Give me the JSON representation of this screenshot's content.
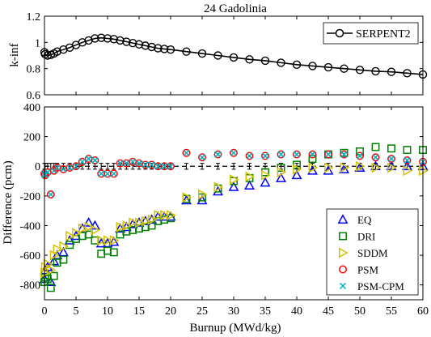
{
  "chart_data": [
    {
      "type": "line",
      "title": "24 Gadolinia",
      "xlabel": "",
      "ylabel": "k-inf",
      "xlim": [
        0,
        60
      ],
      "ylim": [
        0.6,
        1.2
      ],
      "yticks": [
        0.6,
        0.8,
        1,
        1.2
      ],
      "ytick_labels": [
        "0.6",
        "0.8",
        "1",
        "1.2"
      ],
      "grid": false,
      "legend_position": "top-right",
      "series": [
        {
          "name": "SERPENT2",
          "color": "#000000",
          "marker": "circle",
          "x": [
            0,
            0.1,
            0.5,
            1,
            1.5,
            2,
            3,
            4,
            5,
            6,
            7,
            8,
            9,
            10,
            11,
            12,
            13,
            14,
            15,
            16,
            17,
            18,
            19,
            20,
            22.5,
            25,
            27.5,
            30,
            32.5,
            35,
            37.5,
            40,
            42.5,
            45,
            47.5,
            50,
            52.5,
            55,
            57.5,
            60
          ],
          "y": [
            0.925,
            0.91,
            0.9,
            0.905,
            0.915,
            0.93,
            0.945,
            0.96,
            0.98,
            1.0,
            1.015,
            1.03,
            1.035,
            1.03,
            1.025,
            1.015,
            1.005,
            0.995,
            0.985,
            0.975,
            0.965,
            0.955,
            0.95,
            0.945,
            0.93,
            0.915,
            0.9,
            0.885,
            0.87,
            0.86,
            0.845,
            0.83,
            0.82,
            0.81,
            0.8,
            0.79,
            0.78,
            0.775,
            0.765,
            0.755
          ]
        }
      ]
    },
    {
      "type": "scatter",
      "title": "",
      "xlabel": "Burnup (MWd/kg)",
      "ylabel": "Difference (pcm)",
      "xlim": [
        0,
        60
      ],
      "ylim": [
        -900,
        400
      ],
      "xticks": [
        0,
        5,
        10,
        15,
        20,
        25,
        30,
        35,
        40,
        45,
        50,
        55,
        60
      ],
      "xtick_labels": [
        "0",
        "5",
        "10",
        "15",
        "20",
        "25",
        "30",
        "35",
        "40",
        "45",
        "50",
        "55",
        "60"
      ],
      "yticks": [
        -800,
        -600,
        -400,
        -200,
        0,
        200,
        400
      ],
      "ytick_labels": [
        "-800",
        "-600",
        "-400",
        "-200",
        "0",
        "200",
        "400"
      ],
      "grid": false,
      "legend_position": "bottom-right",
      "reference_line": {
        "y": 0,
        "style": "dashed",
        "error_bars": true
      },
      "reference_x": [
        0,
        0.1,
        0.5,
        1,
        1.5,
        2,
        3,
        4,
        5,
        6,
        7,
        8,
        9,
        10,
        11,
        12,
        13,
        14,
        15,
        16,
        17,
        18,
        19,
        20,
        22.5,
        25,
        27.5,
        30,
        32.5,
        35,
        37.5,
        40,
        42.5,
        45,
        47.5,
        50,
        52.5,
        55,
        57.5,
        60
      ],
      "reference_err": 20,
      "series": [
        {
          "name": "EQ",
          "color": "#0000ff",
          "marker": "triangle-up",
          "x": [
            0,
            0.1,
            0.5,
            1,
            1.5,
            2,
            3,
            4,
            5,
            6,
            7,
            8,
            9,
            10,
            11,
            12,
            13,
            14,
            15,
            16,
            17,
            18,
            19,
            20,
            22.5,
            25,
            27.5,
            30,
            32.5,
            35,
            37.5,
            40,
            42.5,
            45,
            47.5,
            50,
            52.5,
            55,
            57.5,
            60
          ],
          "y": [
            -760,
            -700,
            -680,
            -780,
            -640,
            -600,
            -580,
            -500,
            -470,
            -420,
            -380,
            -400,
            -520,
            -520,
            -510,
            -420,
            -410,
            -390,
            -380,
            -370,
            -360,
            -340,
            -340,
            -340,
            -230,
            -230,
            -170,
            -140,
            -130,
            -110,
            -80,
            -60,
            -30,
            -30,
            -20,
            -10,
            0,
            0,
            0,
            0
          ]
        },
        {
          "name": "DRI",
          "color": "#008000",
          "marker": "square",
          "x": [
            0,
            0.1,
            0.5,
            1,
            1.5,
            2,
            3,
            4,
            5,
            6,
            7,
            8,
            9,
            10,
            11,
            12,
            13,
            14,
            15,
            16,
            17,
            18,
            19,
            20,
            22.5,
            25,
            27.5,
            30,
            32.5,
            35,
            37.5,
            40,
            42.5,
            45,
            47.5,
            50,
            52.5,
            55,
            57.5,
            60
          ],
          "y": [
            -780,
            -750,
            -760,
            -820,
            -740,
            -650,
            -630,
            -530,
            -490,
            -470,
            -460,
            -500,
            -590,
            -570,
            -580,
            -460,
            -440,
            -430,
            -420,
            -410,
            -400,
            -370,
            -360,
            -350,
            -220,
            -210,
            -150,
            -100,
            -80,
            -40,
            -10,
            10,
            50,
            80,
            90,
            100,
            130,
            120,
            110,
            110
          ]
        },
        {
          "name": "SDDM",
          "color": "#d4c200",
          "marker": "triangle-right",
          "x": [
            0,
            0.1,
            0.5,
            1,
            1.5,
            2,
            3,
            4,
            5,
            6,
            7,
            8,
            9,
            10,
            11,
            12,
            13,
            14,
            15,
            16,
            17,
            18,
            19,
            20,
            22.5,
            25,
            27.5,
            30,
            32.5,
            35,
            37.5,
            40,
            42.5,
            45,
            47.5,
            50,
            52.5,
            55,
            57.5,
            60
          ],
          "y": [
            -720,
            -680,
            -660,
            -700,
            -600,
            -560,
            -540,
            -470,
            -450,
            -420,
            -410,
            -430,
            -500,
            -500,
            -500,
            -410,
            -400,
            -380,
            -380,
            -370,
            -360,
            -330,
            -330,
            -330,
            -210,
            -190,
            -140,
            -90,
            -70,
            -60,
            -40,
            -20,
            -10,
            -10,
            -10,
            0,
            -10,
            -10,
            -30,
            -30
          ]
        },
        {
          "name": "PSM",
          "color": "#ff0000",
          "marker": "circle",
          "x": [
            0,
            0.1,
            0.5,
            1,
            1.5,
            2,
            3,
            4,
            5,
            6,
            7,
            8,
            9,
            10,
            11,
            12,
            13,
            14,
            15,
            16,
            17,
            18,
            19,
            20,
            22.5,
            25,
            27.5,
            30,
            32.5,
            35,
            37.5,
            40,
            42.5,
            45,
            47.5,
            50,
            52.5,
            55,
            57.5,
            60
          ],
          "y": [
            -50,
            -60,
            -40,
            -190,
            -30,
            -10,
            -20,
            -10,
            0,
            30,
            50,
            40,
            -50,
            -50,
            -50,
            20,
            20,
            30,
            20,
            10,
            10,
            0,
            0,
            0,
            90,
            60,
            80,
            90,
            70,
            70,
            80,
            80,
            80,
            80,
            80,
            70,
            60,
            50,
            40,
            30
          ]
        },
        {
          "name": "PSM-CPM",
          "color": "#00b0c0",
          "marker": "x",
          "x": [
            0,
            0.1,
            0.5,
            1,
            1.5,
            2,
            3,
            4,
            5,
            6,
            7,
            8,
            9,
            10,
            11,
            12,
            13,
            14,
            15,
            16,
            17,
            18,
            19,
            20,
            22.5,
            25,
            27.5,
            30,
            32.5,
            35,
            37.5,
            40,
            42.5,
            45,
            47.5,
            50,
            52.5,
            55,
            57.5,
            60
          ],
          "y": [
            -50,
            -60,
            -40,
            -190,
            -30,
            -10,
            -20,
            -10,
            0,
            30,
            50,
            40,
            -50,
            -50,
            -50,
            20,
            20,
            30,
            20,
            10,
            10,
            0,
            0,
            0,
            90,
            60,
            80,
            90,
            70,
            70,
            80,
            80,
            80,
            80,
            80,
            70,
            60,
            50,
            40,
            30
          ]
        }
      ]
    }
  ]
}
